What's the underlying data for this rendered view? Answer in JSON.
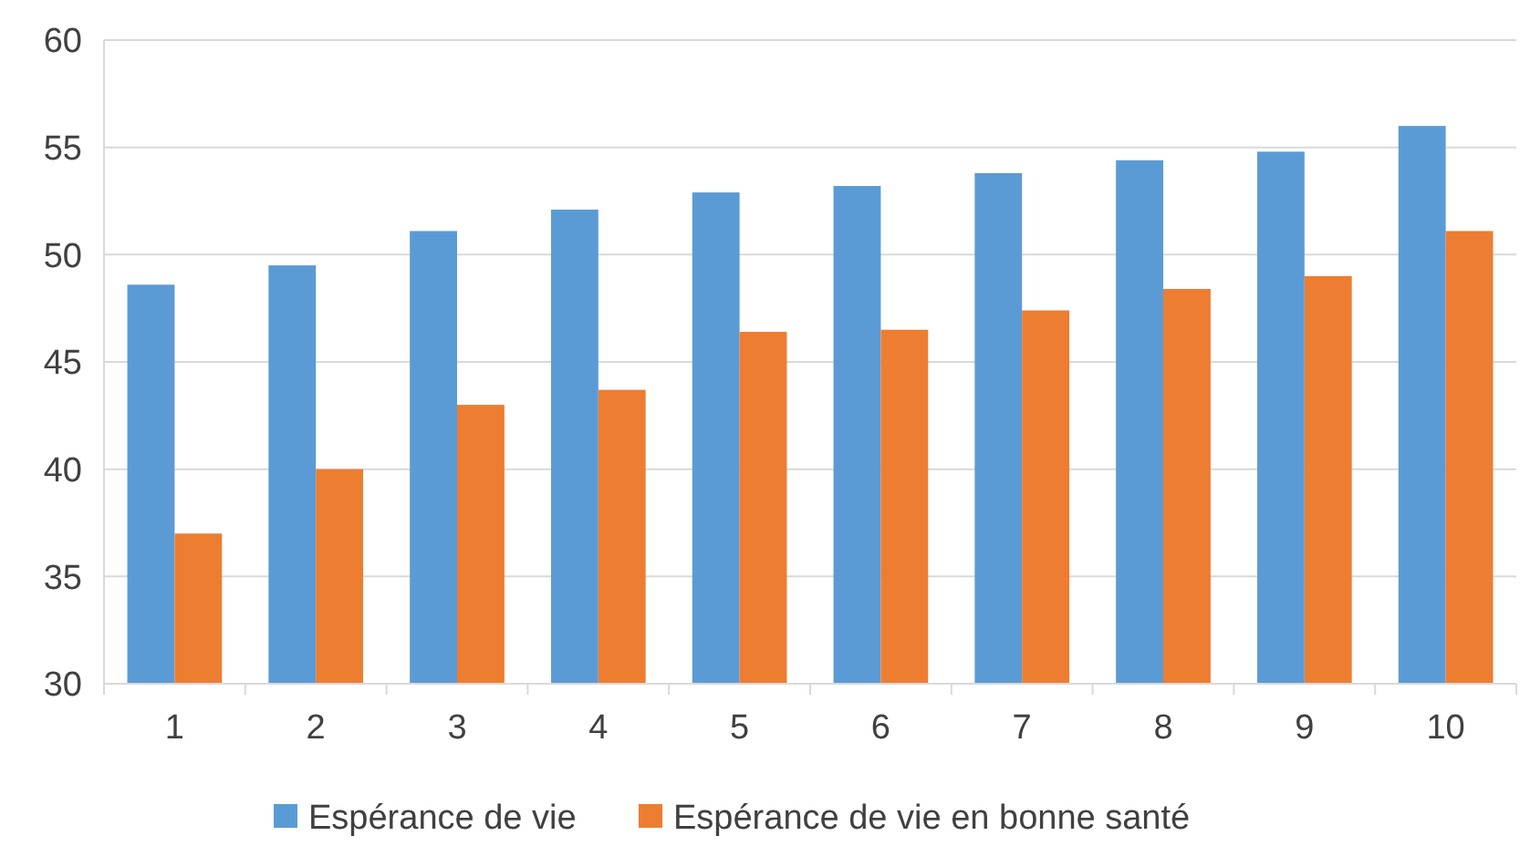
{
  "chart_data": {
    "type": "bar",
    "categories": [
      "1",
      "2",
      "3",
      "4",
      "5",
      "6",
      "7",
      "8",
      "9",
      "10"
    ],
    "series": [
      {
        "name": "Espérance de vie",
        "color": "#5b9bd5",
        "values": [
          48.6,
          49.5,
          51.1,
          52.1,
          52.9,
          53.2,
          53.8,
          54.4,
          54.8,
          56.0
        ]
      },
      {
        "name": "Espérance de vie en bonne santé",
        "color": "#ed7d31",
        "values": [
          37.0,
          40.0,
          43.0,
          43.7,
          46.4,
          46.5,
          47.4,
          48.4,
          49.0,
          51.1
        ]
      }
    ],
    "ylim": [
      30,
      60
    ],
    "yticks": [
      30,
      35,
      40,
      45,
      50,
      55,
      60
    ],
    "grid": "y",
    "legend": "bottom"
  }
}
